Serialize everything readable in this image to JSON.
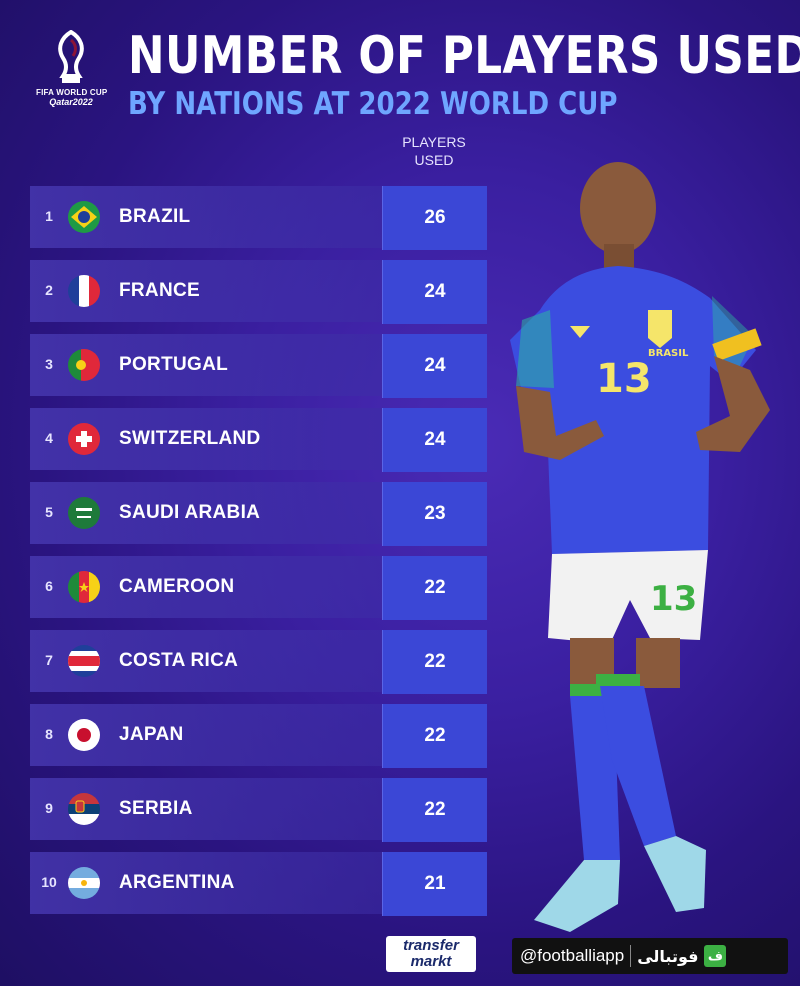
{
  "header": {
    "title": "NUMBER OF PLAYERS USED",
    "subtitle": "BY NATIONS AT 2022 WORLD CUP",
    "logo_line1": "FIFA WORLD CUP",
    "logo_line2": "Qatar2022",
    "column_header_line1": "PLAYERS",
    "column_header_line2": "USED"
  },
  "chart_data": {
    "type": "table",
    "title": "NUMBER OF PLAYERS USED",
    "subtitle": "BY NATIONS AT 2022 WORLD CUP",
    "columns": [
      "",
      "",
      "PLAYERS USED"
    ],
    "rows": [
      {
        "rank": "1",
        "country": "BRAZIL",
        "players_used": 26,
        "flag": "brazil-flag-icon"
      },
      {
        "rank": "2",
        "country": "FRANCE",
        "players_used": 24,
        "flag": "france-flag-icon"
      },
      {
        "rank": "3",
        "country": "PORTUGAL",
        "players_used": 24,
        "flag": "portugal-flag-icon"
      },
      {
        "rank": "4",
        "country": "SWITZERLAND",
        "players_used": 24,
        "flag": "switzerland-flag-icon"
      },
      {
        "rank": "5",
        "country": "SAUDI ARABIA",
        "players_used": 23,
        "flag": "saudi-arabia-flag-icon"
      },
      {
        "rank": "6",
        "country": "CAMEROON",
        "players_used": 22,
        "flag": "cameroon-flag-icon"
      },
      {
        "rank": "7",
        "country": "COSTA RICA",
        "players_used": 22,
        "flag": "costa-rica-flag-icon"
      },
      {
        "rank": "8",
        "country": "JAPAN",
        "players_used": 22,
        "flag": "japan-flag-icon"
      },
      {
        "rank": "9",
        "country": "SERBIA",
        "players_used": 22,
        "flag": "serbia-flag-icon"
      },
      {
        "rank": "10",
        "country": "ARGENTINA",
        "players_used": 21,
        "flag": "argentina-flag-icon"
      }
    ]
  },
  "player_image": {
    "icon": "footballer-illustration",
    "shirt_number": "13",
    "shirt_text": "BRASIL"
  },
  "footer": {
    "source_line1": "transfer",
    "source_line2": "markt",
    "handle": "@footballiapp",
    "app_name": "فوتبالی",
    "app_icon_letter": "ف"
  },
  "colors": {
    "background": "#2a1480",
    "subtitle": "#6fa6ff",
    "value_cell": "#3b47d6",
    "row_band": "#4637af"
  }
}
